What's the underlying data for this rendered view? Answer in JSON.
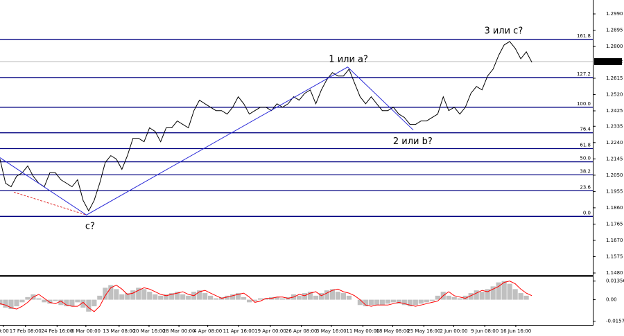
{
  "chart_data": [
    {
      "type": "line",
      "color": "#000000",
      "x": [
        0,
        1,
        2,
        3,
        4,
        5,
        6,
        7,
        8,
        9,
        10,
        11,
        12,
        13,
        14,
        15,
        16,
        17,
        18,
        19,
        20,
        21,
        22,
        23,
        24,
        25,
        26,
        27,
        28,
        29,
        30,
        31,
        32,
        33,
        34,
        35,
        36,
        37,
        38,
        39,
        40,
        41,
        42,
        43,
        44,
        45,
        46,
        47,
        48,
        49,
        50,
        51,
        52,
        53,
        54,
        55,
        56,
        57,
        58,
        59,
        60,
        61,
        62,
        63,
        64,
        65,
        66,
        67,
        68,
        69,
        70,
        71,
        72,
        73,
        74,
        75,
        76,
        77,
        78,
        79,
        80,
        81,
        82,
        83,
        84,
        85,
        86,
        87,
        88,
        89,
        90,
        91,
        92,
        93,
        94,
        95,
        96
      ],
      "values": [
        1.2144,
        1.2003,
        1.1983,
        1.2044,
        1.2064,
        1.2104,
        1.2044,
        1.2003,
        1.1983,
        1.2064,
        1.2064,
        1.2023,
        1.2003,
        1.1983,
        1.2023,
        1.1903,
        1.1842,
        1.1903,
        1.2003,
        1.2124,
        1.2164,
        1.2144,
        1.2084,
        1.2164,
        1.2265,
        1.2265,
        1.2245,
        1.2326,
        1.2305,
        1.2245,
        1.2326,
        1.2326,
        1.2366,
        1.2346,
        1.2326,
        1.2426,
        1.2487,
        1.2466,
        1.2446,
        1.2426,
        1.2426,
        1.2406,
        1.2446,
        1.2507,
        1.2466,
        1.2406,
        1.2426,
        1.2446,
        1.2446,
        1.2426,
        1.2466,
        1.2446,
        1.2466,
        1.2507,
        1.2487,
        1.2527,
        1.2547,
        1.2466,
        1.2547,
        1.2607,
        1.2648,
        1.2628,
        1.2628,
        1.2668,
        1.2587,
        1.2507,
        1.2466,
        1.2507,
        1.2466,
        1.2426,
        1.2426,
        1.2446,
        1.2406,
        1.2386,
        1.2346,
        1.2346,
        1.2366,
        1.2366,
        1.2386,
        1.2406,
        1.2507,
        1.2426,
        1.2446,
        1.2406,
        1.2446,
        1.2527,
        1.2567,
        1.2547,
        1.2628,
        1.2668,
        1.2748,
        1.2809,
        1.2829,
        1.2789,
        1.2728,
        1.2769,
        1.2708
      ],
      "xlim": [
        0,
        107
      ],
      "ylim": [
        1.1468,
        1.3071
      ],
      "yticks": [
        {
          "value": 1.299,
          "label": "1.2990"
        },
        1.2895,
        {
          "value": 1.28,
          "label": "1.2800"
        },
        1.2615,
        {
          "value": 1.252,
          "label": "1.2520"
        },
        1.2425,
        1.2335,
        {
          "value": 1.224,
          "label": "1.2240"
        },
        1.2145,
        {
          "value": 1.205,
          "label": "1.2050"
        },
        1.1955,
        {
          "value": 1.186,
          "label": "1.1860"
        },
        1.1765,
        {
          "value": 1.167,
          "label": "1.1670"
        },
        1.1575,
        {
          "value": 1.148,
          "label": "1.1480"
        }
      ],
      "last_price": 1.2712,
      "fib_color": "#000080",
      "fib_levels": [
        {
          "value": 1.2841,
          "label": "161.8"
        },
        {
          "value": 1.2619,
          "label": "127.2"
        },
        {
          "value": 1.2446,
          "label": "100.0"
        },
        {
          "value": 1.2297,
          "label": "76.4"
        },
        {
          "value": 1.2205,
          "label": "61.8"
        },
        {
          "value": 1.2128,
          "label": "50.0"
        },
        {
          "value": 1.2052,
          "label": "38.2"
        },
        {
          "value": 1.1959,
          "label": "23.6"
        },
        {
          "value": 1.181,
          "label": "0.0"
        }
      ],
      "waves": {
        "x": [
          0,
          15.6,
          62.75,
          74.6
        ],
        "values": [
          1.2152,
          1.1818,
          1.268,
          1.2313
        ],
        "color": "#2b2bd8"
      },
      "projection": {
        "x": [
          2.5,
          15.6
        ],
        "values": [
          1.1951,
          1.1818
        ],
        "color": "#e03030"
      },
      "annotation_color": "#1e2aa8",
      "annotations": [
        {
          "text": "c?",
          "x": 16.25,
          "y": 1.175
        },
        {
          "text": "1 или a?",
          "x": 62.9,
          "y": 1.2724
        },
        {
          "text": "2 или b?",
          "x": 74.5,
          "y": 1.2245
        },
        {
          "text": "3 или c?",
          "x": 90.9,
          "y": 1.2889
        }
      ]
    },
    {
      "type": "bar",
      "color": "#c0c0c0",
      "values": [
        -0.0039,
        -0.0058,
        -0.0068,
        -0.0048,
        -0.0019,
        0.0019,
        0.0039,
        0.001,
        -0.0019,
        -0.0029,
        -0.001,
        -0.0039,
        -0.0048,
        -0.0048,
        -0.0019,
        -0.0058,
        -0.0087,
        -0.0048,
        0.0029,
        0.0087,
        0.0106,
        0.0077,
        0.0039,
        0.0048,
        0.0068,
        0.0087,
        0.0077,
        0.0058,
        0.0039,
        0.0029,
        0.0039,
        0.0048,
        0.0058,
        0.0039,
        0.0029,
        0.0058,
        0.0068,
        0.0048,
        0.0029,
        0.001,
        0.0019,
        0.0029,
        0.0039,
        0.0048,
        0.0019,
        -0.0019,
        -0.001,
        0.001,
        0.001,
        0.0019,
        0.0019,
        0.001,
        0.0019,
        0.0039,
        0.0029,
        0.0048,
        0.0058,
        0.0029,
        0.0048,
        0.0068,
        0.0077,
        0.0058,
        0.0048,
        0.0029,
        0,
        -0.0039,
        -0.0048,
        -0.0039,
        -0.0039,
        -0.0039,
        -0.0029,
        -0.0019,
        -0.0029,
        -0.0039,
        -0.0048,
        -0.0039,
        -0.0029,
        -0.0019,
        -0.001,
        0.0029,
        0.0058,
        0.0029,
        0.0019,
        0.001,
        0.0029,
        0.0048,
        0.0068,
        0.0058,
        0.0077,
        0.0097,
        0.0126,
        0.0136,
        0.0116,
        0.0077,
        0.0048,
        0.0029,
        0
      ],
      "signal": {
        "color": "#ff0000",
        "values": [
          -0.0029,
          -0.0039,
          -0.0058,
          -0.0068,
          -0.0048,
          -0.0019,
          0.0019,
          0.0039,
          0.001,
          -0.0019,
          -0.0029,
          -0.001,
          -0.0039,
          -0.0048,
          -0.0048,
          -0.0019,
          -0.0058,
          -0.0087,
          -0.0048,
          0.0029,
          0.0087,
          0.0106,
          0.0077,
          0.0039,
          0.0048,
          0.0068,
          0.0087,
          0.0077,
          0.0058,
          0.0039,
          0.0029,
          0.0039,
          0.0048,
          0.0058,
          0.0039,
          0.0029,
          0.0058,
          0.0068,
          0.0048,
          0.0029,
          0.001,
          0.0019,
          0.0029,
          0.0039,
          0.0048,
          0.0019,
          -0.0019,
          -0.001,
          0.001,
          0.001,
          0.0019,
          0.0019,
          0.001,
          0.0019,
          0.0039,
          0.0029,
          0.0048,
          0.0058,
          0.0029,
          0.0048,
          0.0068,
          0.0077,
          0.0058,
          0.0048,
          0.0029,
          0,
          -0.0039,
          -0.0048,
          -0.0039,
          -0.0039,
          -0.0039,
          -0.0029,
          -0.0019,
          -0.0029,
          -0.0039,
          -0.0048,
          -0.0039,
          -0.0029,
          -0.0019,
          -0.001,
          0.0029,
          0.0058,
          0.0029,
          0.0019,
          0.001,
          0.0029,
          0.0048,
          0.0068,
          0.0058,
          0.0077,
          0.0097,
          0.0126,
          0.0136,
          0.0116,
          0.0077,
          0.0048,
          0.0029
        ]
      },
      "xlim": [
        0,
        107
      ],
      "ylim": [
        -0.01839,
        0.01646
      ],
      "yticks": [
        0.01356,
        {
          "value": 0,
          "label": "0.00"
        },
        -0.0157
      ],
      "xticks": [
        {
          "value": 0.6,
          "label": "0:00"
        },
        {
          "value": 4.6,
          "label": "17 Feb 08:00"
        },
        {
          "value": 10.3,
          "label": "24 Feb 16:00"
        },
        {
          "value": 15.5,
          "label": "6 Mar 00:00"
        },
        {
          "value": 21.5,
          "label": "13 Mar 08:00"
        },
        {
          "value": 26.9,
          "label": "20 Mar 16:00"
        },
        {
          "value": 32.3,
          "label": "28 Mar 00:00"
        },
        {
          "value": 37.5,
          "label": "4 Apr 08:00"
        },
        {
          "value": 43.1,
          "label": "11 Apr 16:00"
        },
        {
          "value": 48.8,
          "label": "19 Apr 00:00"
        },
        {
          "value": 54.4,
          "label": "26 Apr 08:00"
        },
        {
          "value": 59.8,
          "label": "3 May 16:00"
        },
        {
          "value": 65.5,
          "label": "11 May 00:00"
        },
        {
          "value": 70.9,
          "label": "18 May 08:00"
        },
        {
          "value": 76.5,
          "label": "25 May 16:00"
        },
        {
          "value": 81.9,
          "label": "2 Jun 00:00"
        },
        {
          "value": 87.5,
          "label": "9 Jun 08:00"
        },
        {
          "value": 93.1,
          "label": "16 Jun 16:00"
        }
      ]
    }
  ]
}
